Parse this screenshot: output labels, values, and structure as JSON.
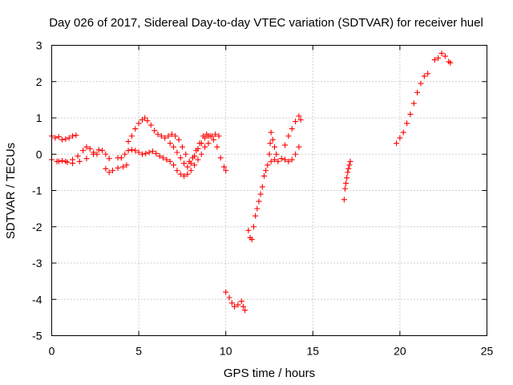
{
  "chart_data": {
    "type": "scatter",
    "title": "Day 026 of 2017, Sidereal Day-to-day VTEC variation (SDTVAR) for receiver huel",
    "xlabel": "GPS time / hours",
    "ylabel": "SDTVAR / TECUs",
    "xlim": [
      0,
      25
    ],
    "ylim": [
      -5,
      3
    ],
    "xticks": [
      0,
      5,
      10,
      15,
      20,
      25
    ],
    "yticks": [
      -5,
      -4,
      -3,
      -2,
      -1,
      0,
      1,
      2,
      3
    ],
    "grid": true,
    "marker": "+",
    "color": "#ff0000",
    "series": [
      {
        "points": [
          [
            0.0,
            0.5
          ],
          [
            0.2,
            0.45
          ],
          [
            0.4,
            0.48
          ],
          [
            0.6,
            0.4
          ],
          [
            0.8,
            0.42
          ],
          [
            1.0,
            0.45
          ],
          [
            1.2,
            0.5
          ],
          [
            1.4,
            0.52
          ],
          [
            0.0,
            -0.15
          ],
          [
            0.3,
            -0.2
          ],
          [
            0.6,
            -0.18
          ],
          [
            0.9,
            -0.22
          ],
          [
            1.2,
            -0.15
          ],
          [
            1.5,
            -0.05
          ],
          [
            1.8,
            0.1
          ],
          [
            2.0,
            0.2
          ],
          [
            2.2,
            0.15
          ],
          [
            2.4,
            0.05
          ],
          [
            2.6,
            0.0
          ],
          [
            0.4,
            -0.2
          ],
          [
            0.8,
            -0.2
          ],
          [
            1.2,
            -0.25
          ],
          [
            1.6,
            -0.2
          ],
          [
            2.0,
            -0.12
          ],
          [
            2.4,
            0.0
          ],
          [
            2.7,
            0.12
          ],
          [
            2.9,
            0.1
          ],
          [
            3.1,
            0.0
          ],
          [
            3.3,
            -0.12
          ],
          [
            3.1,
            -0.4
          ],
          [
            3.3,
            -0.5
          ],
          [
            3.5,
            -0.45
          ],
          [
            3.8,
            -0.38
          ],
          [
            4.1,
            -0.35
          ],
          [
            4.3,
            -0.3
          ],
          [
            3.8,
            -0.1
          ],
          [
            4.0,
            -0.1
          ],
          [
            4.2,
            0.0
          ],
          [
            4.4,
            0.1
          ],
          [
            4.6,
            0.12
          ],
          [
            4.8,
            0.1
          ],
          [
            5.0,
            0.05
          ],
          [
            5.2,
            0.0
          ],
          [
            5.4,
            0.02
          ],
          [
            5.6,
            0.05
          ],
          [
            5.8,
            0.08
          ],
          [
            6.0,
            0.02
          ],
          [
            6.2,
            -0.05
          ],
          [
            6.4,
            -0.1
          ],
          [
            6.6,
            -0.15
          ],
          [
            6.8,
            -0.2
          ],
          [
            7.0,
            -0.3
          ],
          [
            7.2,
            -0.45
          ],
          [
            7.4,
            -0.55
          ],
          [
            7.6,
            -0.6
          ],
          [
            7.8,
            -0.55
          ],
          [
            8.0,
            -0.45
          ],
          [
            8.2,
            -0.3
          ],
          [
            8.4,
            -0.15
          ],
          [
            8.6,
            0.0
          ],
          [
            8.8,
            0.2
          ],
          [
            9.0,
            0.3
          ],
          [
            4.4,
            0.35
          ],
          [
            4.6,
            0.5
          ],
          [
            4.8,
            0.7
          ],
          [
            5.0,
            0.85
          ],
          [
            5.2,
            0.95
          ],
          [
            5.35,
            1.0
          ],
          [
            5.5,
            0.92
          ],
          [
            5.7,
            0.8
          ],
          [
            5.9,
            0.65
          ],
          [
            6.1,
            0.55
          ],
          [
            6.3,
            0.5
          ],
          [
            6.5,
            0.45
          ],
          [
            6.7,
            0.5
          ],
          [
            6.9,
            0.55
          ],
          [
            7.1,
            0.5
          ],
          [
            7.3,
            0.4
          ],
          [
            7.5,
            0.2
          ],
          [
            7.7,
            0.0
          ],
          [
            7.9,
            -0.2
          ],
          [
            8.1,
            -0.1
          ],
          [
            8.3,
            0.1
          ],
          [
            8.5,
            0.3
          ],
          [
            8.7,
            0.5
          ],
          [
            8.9,
            0.55
          ],
          [
            9.1,
            0.5
          ],
          [
            9.3,
            0.4
          ],
          [
            9.5,
            0.2
          ],
          [
            9.7,
            -0.1
          ],
          [
            9.9,
            -0.35
          ],
          [
            10.0,
            -0.45
          ],
          [
            6.8,
            0.3
          ],
          [
            7.0,
            0.2
          ],
          [
            7.2,
            0.05
          ],
          [
            7.4,
            -0.1
          ],
          [
            7.6,
            -0.25
          ],
          [
            7.8,
            -0.35
          ],
          [
            8.0,
            -0.25
          ],
          [
            8.2,
            -0.05
          ],
          [
            8.4,
            0.15
          ],
          [
            8.6,
            0.3
          ],
          [
            8.8,
            0.45
          ],
          [
            9.0,
            0.5
          ],
          [
            9.2,
            0.5
          ],
          [
            9.4,
            0.55
          ],
          [
            9.6,
            0.5
          ],
          [
            10.0,
            -3.8
          ],
          [
            10.2,
            -3.95
          ],
          [
            10.35,
            -4.1
          ],
          [
            10.5,
            -4.2
          ],
          [
            10.7,
            -4.15
          ],
          [
            10.9,
            -4.05
          ],
          [
            11.0,
            -4.2
          ],
          [
            11.1,
            -4.3
          ],
          [
            11.3,
            -2.1
          ],
          [
            11.4,
            -2.3
          ],
          [
            11.5,
            -2.35
          ],
          [
            11.6,
            -2.0
          ],
          [
            11.7,
            -1.7
          ],
          [
            11.8,
            -1.5
          ],
          [
            11.9,
            -1.3
          ],
          [
            12.0,
            -1.1
          ],
          [
            12.1,
            -0.9
          ],
          [
            12.2,
            -0.6
          ],
          [
            12.3,
            -0.45
          ],
          [
            12.4,
            -0.3
          ],
          [
            12.5,
            0.0
          ],
          [
            12.55,
            0.3
          ],
          [
            12.6,
            0.6
          ],
          [
            12.7,
            0.4
          ],
          [
            12.8,
            0.2
          ],
          [
            12.9,
            0.0
          ],
          [
            12.6,
            -0.2
          ],
          [
            12.8,
            -0.15
          ],
          [
            13.0,
            -0.2
          ],
          [
            13.2,
            -0.12
          ],
          [
            13.4,
            -0.15
          ],
          [
            13.6,
            -0.2
          ],
          [
            13.8,
            -0.15
          ],
          [
            14.0,
            0.0
          ],
          [
            14.2,
            0.2
          ],
          [
            13.4,
            0.25
          ],
          [
            13.6,
            0.5
          ],
          [
            13.8,
            0.7
          ],
          [
            14.0,
            0.9
          ],
          [
            14.2,
            1.05
          ],
          [
            14.3,
            0.95
          ],
          [
            16.8,
            -1.25
          ],
          [
            16.85,
            -0.95
          ],
          [
            16.9,
            -0.8
          ],
          [
            16.95,
            -0.65
          ],
          [
            17.0,
            -0.5
          ],
          [
            17.05,
            -0.4
          ],
          [
            17.1,
            -0.3
          ],
          [
            17.15,
            -0.2
          ],
          [
            19.8,
            0.3
          ],
          [
            20.0,
            0.45
          ],
          [
            20.2,
            0.6
          ],
          [
            20.4,
            0.85
          ],
          [
            20.6,
            1.1
          ],
          [
            20.8,
            1.4
          ],
          [
            21.0,
            1.7
          ],
          [
            21.2,
            1.95
          ],
          [
            21.4,
            2.15
          ],
          [
            21.6,
            2.22
          ],
          [
            22.0,
            2.6
          ],
          [
            22.2,
            2.65
          ],
          [
            22.4,
            2.78
          ],
          [
            22.6,
            2.7
          ],
          [
            22.8,
            2.55
          ],
          [
            22.9,
            2.52
          ]
        ]
      }
    ]
  }
}
